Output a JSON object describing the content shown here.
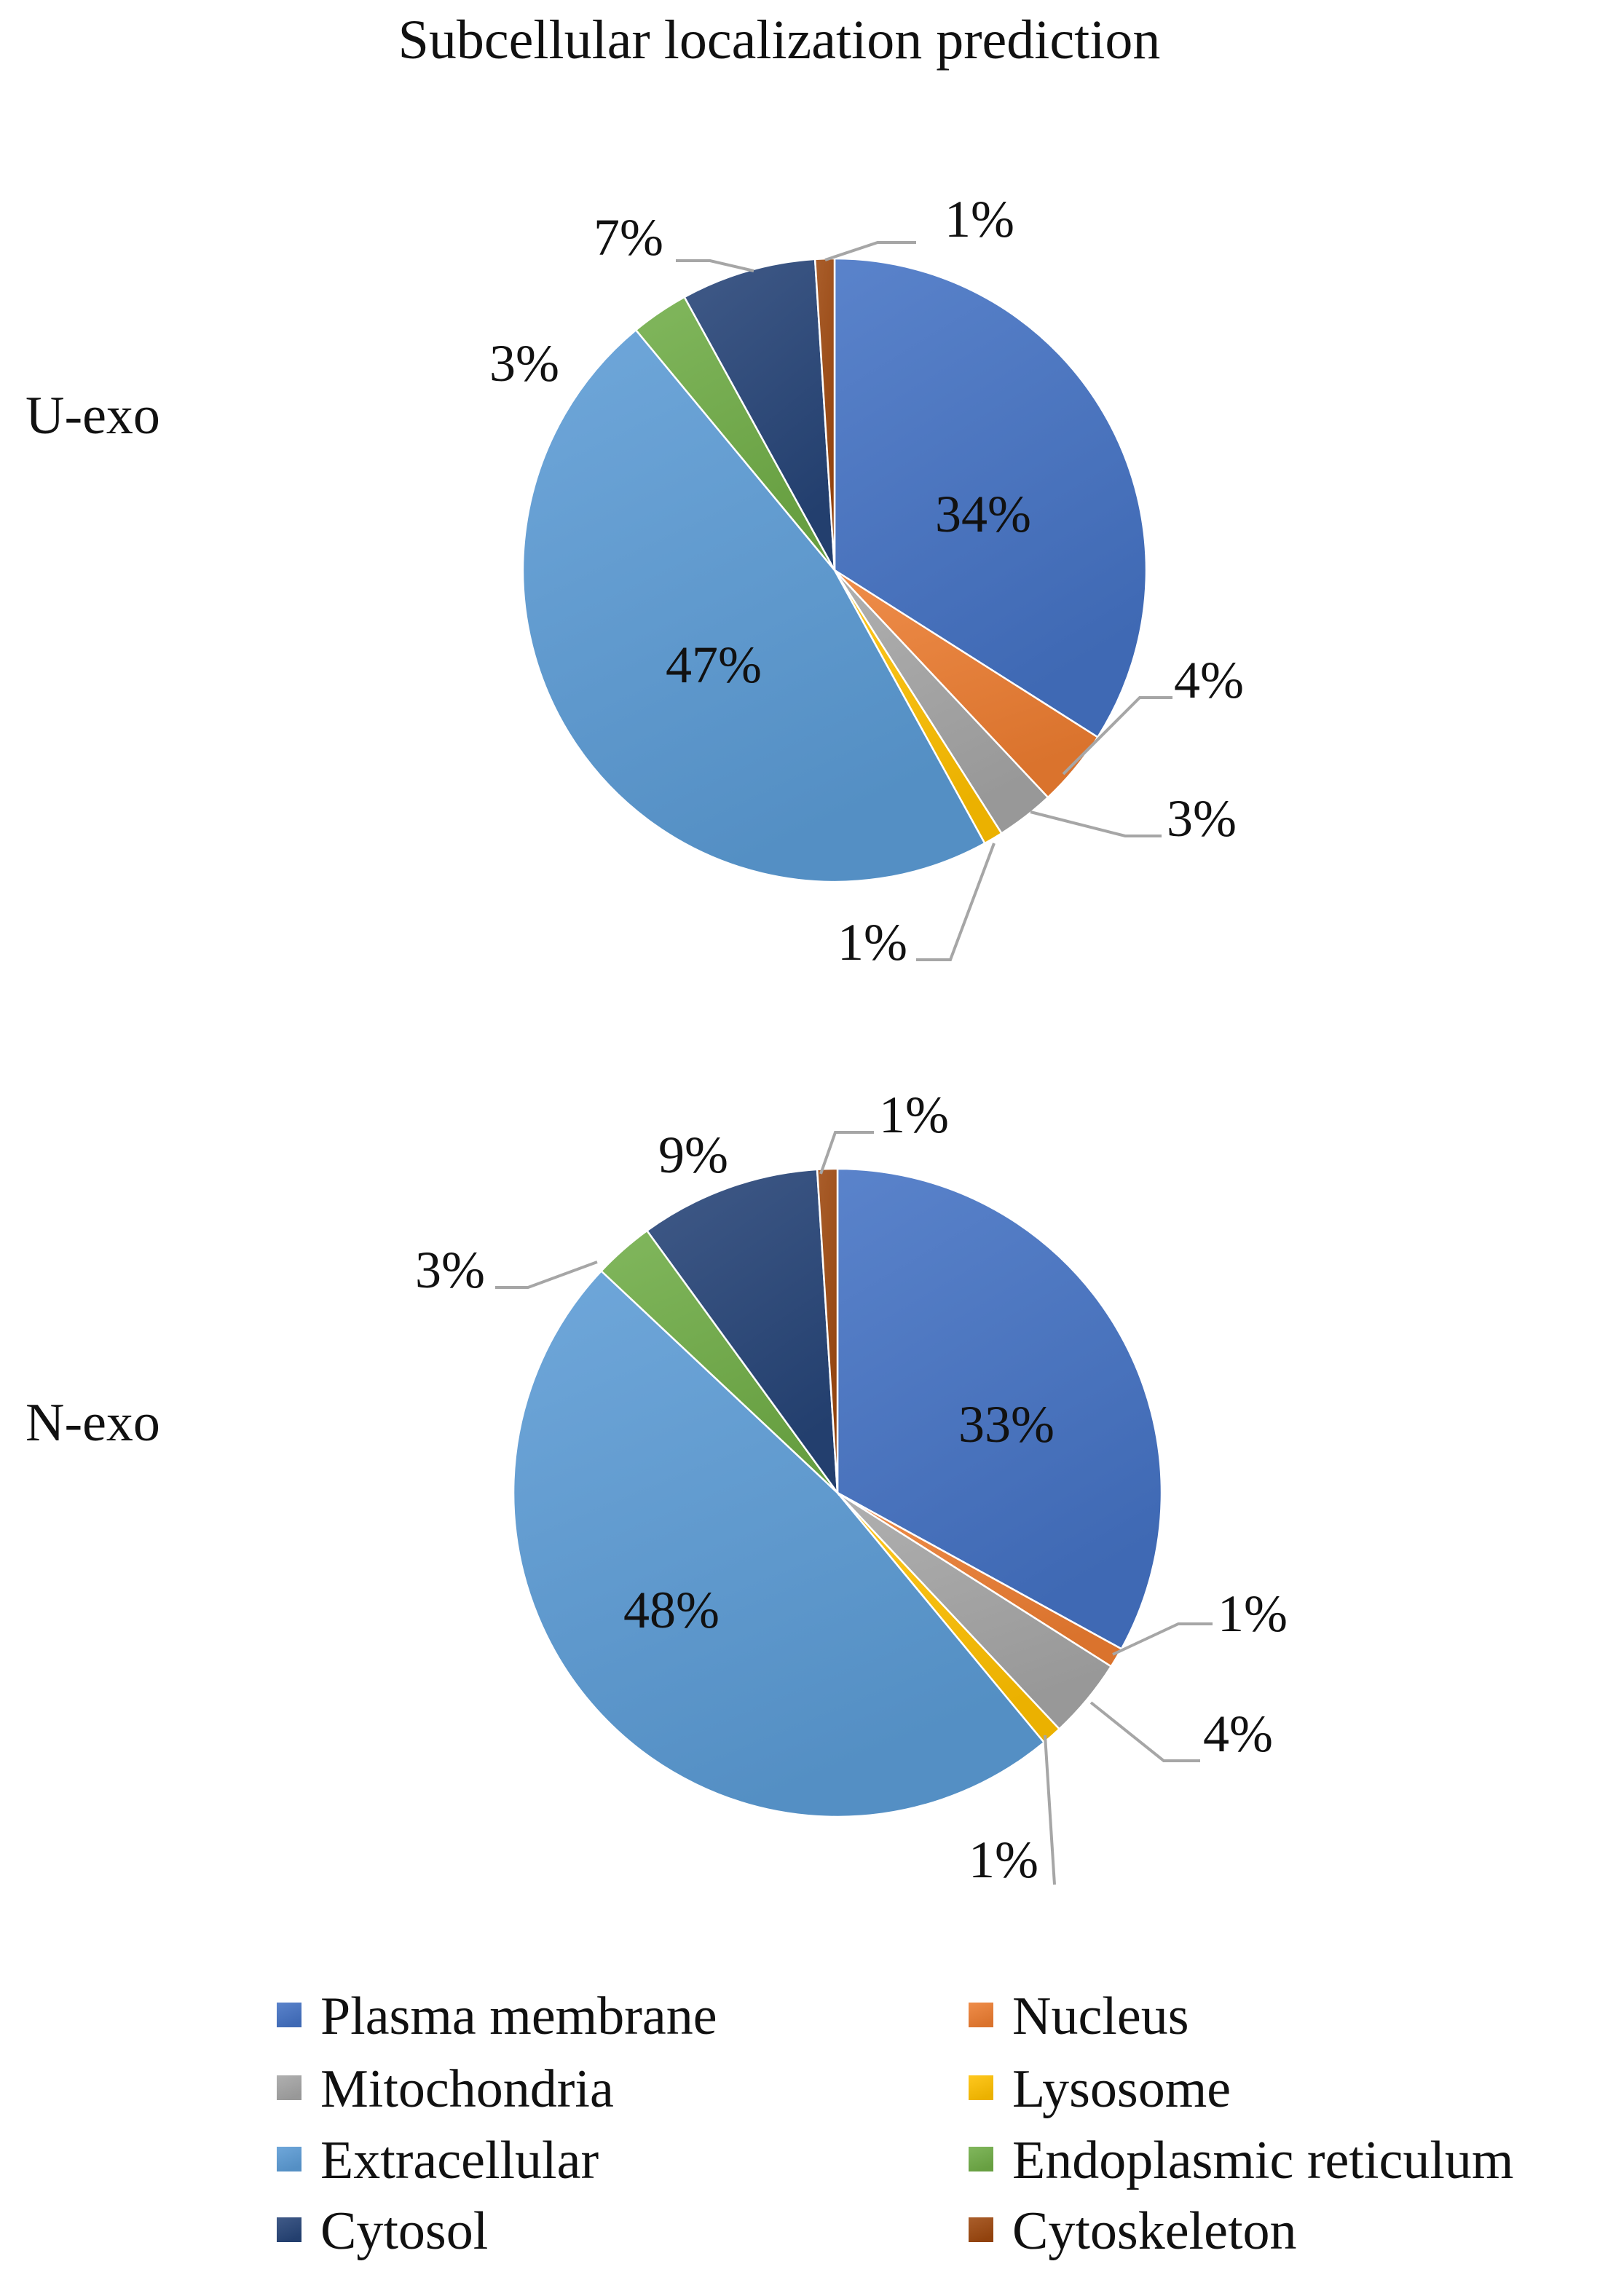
{
  "chart_data": {
    "type": "pie",
    "title": "Subcellular localization prediction",
    "categories": [
      "Plasma membrane",
      "Nucleus",
      "Mitochondria",
      "Lysosome",
      "Extracellular",
      "Endoplasmic reticulum",
      "Cytosol",
      "Cytoskeleton"
    ],
    "colors": {
      "Plasma membrane": "#4472c4",
      "Nucleus": "#ed7d31",
      "Mitochondria": "#a5a5a5",
      "Lysosome": "#ffc000",
      "Extracellular": "#5b9bd5",
      "Endoplasmic reticulum": "#70ad47",
      "Cytosol": "#264478",
      "Cytoskeleton": "#9e480e"
    },
    "legend_position": "bottom",
    "series": [
      {
        "name": "U-exo",
        "values": [
          34,
          4,
          3,
          1,
          47,
          3,
          7,
          1
        ],
        "labels": [
          "34%",
          "4%",
          "3%",
          "1%",
          "47%",
          "3%",
          "7%",
          "1%"
        ]
      },
      {
        "name": "N-exo",
        "values": [
          33,
          1,
          4,
          1,
          48,
          3,
          9,
          1
        ],
        "labels": [
          "33%",
          "1%",
          "4%",
          "1%",
          "48%",
          "3%",
          "9%",
          "1%"
        ]
      }
    ]
  }
}
